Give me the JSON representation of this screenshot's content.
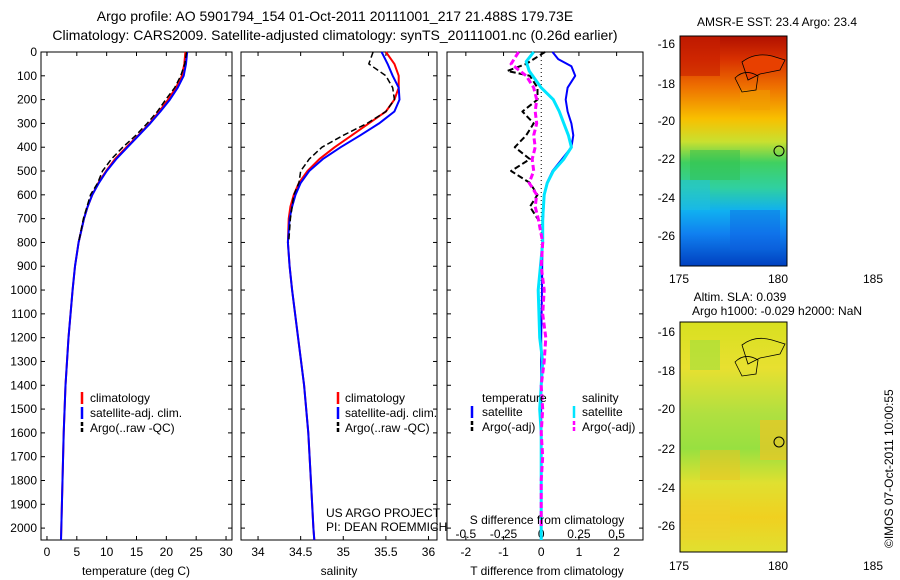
{
  "header": {
    "title_line1": "Argo profile: AO 5901794_154 01-Oct-2011 20111001_217 21.488S 179.73E",
    "title_line2": "Climatology: CARS2009. Satellite-adjusted climatology: synTS_20111001.nc (0.26d earlier)"
  },
  "colors": {
    "climatology": "#ff0000",
    "satellite": "#0000ff",
    "argo": "#000000",
    "sal_satellite": "#00e5ff",
    "sal_argo": "#ff00ff"
  },
  "chart_data": [
    {
      "id": "temperature",
      "type": "line",
      "xlabel": "temperature (deg C)",
      "ylabel": "",
      "xlim": [
        -1,
        31
      ],
      "ylim": [
        2050,
        0
      ],
      "xticks": [
        "0",
        "5",
        "10",
        "15",
        "20",
        "25",
        "30"
      ],
      "yticks": [
        "0",
        "100",
        "200",
        "300",
        "400",
        "500",
        "600",
        "700",
        "800",
        "900",
        "1000",
        "1100",
        "1200",
        "1300",
        "1400",
        "1500",
        "1600",
        "1700",
        "1800",
        "1900",
        "2000"
      ],
      "legend": [
        "climatology",
        "satellite-adj. clim.",
        "Argo(..raw -QC)"
      ],
      "series": [
        {
          "name": "climatology",
          "depth": [
            0,
            50,
            100,
            150,
            200,
            250,
            300,
            350,
            400,
            450,
            500,
            550,
            600,
            650,
            700,
            800,
            900,
            1000,
            1200,
            1400,
            1600,
            1800,
            2000,
            2050
          ],
          "values": [
            23.2,
            23.0,
            22.6,
            21.6,
            20.3,
            18.8,
            17.2,
            15.3,
            13.3,
            11.4,
            9.9,
            8.6,
            7.6,
            6.8,
            6.2,
            5.3,
            4.7,
            4.3,
            3.6,
            3.1,
            2.8,
            2.6,
            2.4,
            2.35
          ]
        },
        {
          "name": "satellite-adj. clim.",
          "depth": [
            0,
            50,
            100,
            150,
            200,
            250,
            300,
            350,
            400,
            450,
            500,
            550,
            600,
            650,
            700,
            800,
            900,
            1000,
            1200,
            1400,
            1600,
            1800,
            2000,
            2050
          ],
          "values": [
            23.5,
            23.3,
            22.9,
            21.9,
            20.6,
            19.0,
            17.3,
            15.4,
            13.5,
            11.6,
            10.0,
            8.7,
            7.6,
            6.8,
            6.2,
            5.3,
            4.7,
            4.3,
            3.6,
            3.1,
            2.8,
            2.6,
            2.4,
            2.35
          ]
        },
        {
          "name": "Argo(..raw -QC)",
          "depth": [
            0,
            50,
            100,
            150,
            200,
            250,
            300,
            350,
            400,
            450,
            500,
            550,
            600,
            650,
            700,
            800
          ],
          "values": [
            23.4,
            23.1,
            22.4,
            21.4,
            19.9,
            18.5,
            16.8,
            14.9,
            12.7,
            10.8,
            9.3,
            8.5,
            7.3,
            6.7,
            6.1,
            5.3
          ]
        }
      ]
    },
    {
      "id": "salinity",
      "type": "line",
      "xlabel": "salinity",
      "ylabel": "",
      "xlim": [
        33.8,
        36.1
      ],
      "ylim": [
        2050,
        0
      ],
      "xticks": [
        "34",
        "34.5",
        "35",
        "35.5",
        "36"
      ],
      "legend": [
        "climatology",
        "satellite-adj. clim.",
        "Argo(..raw -QC)"
      ],
      "annotation": [
        "US ARGO PROJECT",
        "PI: DEAN ROEMMICH"
      ],
      "series": [
        {
          "name": "climatology",
          "depth": [
            0,
            50,
            100,
            150,
            200,
            250,
            300,
            350,
            400,
            450,
            500,
            550,
            600,
            650,
            700,
            800,
            900,
            1000,
            1200,
            1400,
            1600,
            1800,
            2000,
            2050
          ],
          "values": [
            35.5,
            35.6,
            35.65,
            35.65,
            35.6,
            35.5,
            35.3,
            35.1,
            34.9,
            34.72,
            34.58,
            34.48,
            34.42,
            34.38,
            34.36,
            34.35,
            34.37,
            34.4,
            34.47,
            34.54,
            34.59,
            34.62,
            34.65,
            34.66
          ]
        },
        {
          "name": "satellite-adj. clim.",
          "depth": [
            0,
            50,
            100,
            150,
            200,
            250,
            300,
            350,
            400,
            450,
            500,
            550,
            600,
            650,
            700,
            800,
            900,
            1000,
            1200,
            1400,
            1600,
            1800,
            2000,
            2050
          ],
          "values": [
            35.45,
            35.52,
            35.58,
            35.65,
            35.66,
            35.6,
            35.42,
            35.2,
            34.97,
            34.76,
            34.6,
            34.5,
            34.44,
            34.4,
            34.37,
            34.35,
            34.37,
            34.4,
            34.47,
            34.54,
            34.59,
            34.62,
            34.65,
            34.66
          ]
        },
        {
          "name": "Argo(..raw -QC)",
          "depth": [
            0,
            50,
            80,
            100,
            150,
            200,
            250,
            300,
            350,
            400,
            450,
            500,
            550,
            600,
            650,
            700,
            800
          ],
          "values": [
            35.35,
            35.3,
            35.42,
            35.5,
            35.58,
            35.6,
            35.5,
            35.28,
            35.0,
            34.75,
            34.6,
            34.5,
            34.48,
            34.42,
            34.4,
            34.38,
            34.36
          ]
        }
      ]
    },
    {
      "id": "difference",
      "type": "line",
      "xlabel": "T difference from climatology",
      "xlabel_top": "S difference from climatology",
      "xlim": [
        -2.5,
        2.7
      ],
      "ylim": [
        2050,
        0
      ],
      "xticks": [
        "-2",
        "-1",
        "0",
        "1",
        "2"
      ],
      "xticks_top": [
        "-0.5",
        "-0.25",
        "0",
        "0.25",
        "0.5"
      ],
      "legend_t_title": "temperature",
      "legend_s_title": "salinity",
      "legend": [
        "satellite",
        "Argo(-adj)",
        "satellite",
        "Argo(-adj)"
      ],
      "series": [
        {
          "name": "T satellite",
          "depth": [
            0,
            30,
            60,
            100,
            150,
            200,
            250,
            300,
            350,
            400,
            450,
            500,
            550,
            600,
            700,
            800,
            1000,
            1200,
            1500,
            2000,
            2050
          ],
          "values": [
            0.3,
            0.45,
            0.8,
            0.9,
            0.7,
            0.65,
            0.7,
            0.8,
            0.85,
            0.8,
            0.55,
            0.3,
            0.15,
            0.08,
            0.05,
            0.03,
            0.02,
            0.0,
            0.0,
            0.0,
            0.0
          ]
        },
        {
          "name": "T Argo(-adj)",
          "depth": [
            0,
            50,
            80,
            100,
            150,
            200,
            250,
            300,
            350,
            400,
            450,
            500,
            550,
            600,
            650,
            700
          ],
          "values": [
            0.1,
            -0.4,
            -0.9,
            -0.3,
            -0.1,
            -0.1,
            -0.5,
            -0.2,
            -0.4,
            -0.7,
            -0.3,
            -0.8,
            -0.3,
            -0.1,
            -0.3,
            -0.1
          ]
        },
        {
          "name": "S satellite",
          "depth": [
            0,
            40,
            80,
            150,
            200,
            250,
            300,
            350,
            400,
            450,
            500,
            550,
            600,
            700,
            800,
            1000,
            1200,
            1300,
            1400,
            1500,
            1600,
            2000,
            2050
          ],
          "values": [
            -0.05,
            -0.1,
            -0.08,
            0.0,
            0.08,
            0.12,
            0.15,
            0.18,
            0.2,
            0.15,
            0.08,
            0.04,
            0.02,
            0.01,
            0.01,
            -0.02,
            -0.01,
            0.01,
            0.0,
            -0.01,
            0.0,
            0.0,
            0.0
          ]
        },
        {
          "name": "S Argo(-adj)",
          "depth": [
            0,
            50,
            100,
            150,
            200,
            250,
            300,
            350,
            400,
            450,
            500,
            550,
            600,
            650,
            700,
            800,
            900,
            1000,
            1100,
            1200,
            1300,
            1400,
            1500,
            1600,
            1700,
            1800,
            2000
          ],
          "values": [
            -0.15,
            -0.2,
            -0.1,
            -0.05,
            -0.03,
            -0.04,
            -0.03,
            -0.05,
            -0.04,
            -0.06,
            -0.05,
            -0.08,
            -0.03,
            -0.04,
            -0.02,
            0.01,
            0.0,
            0.02,
            0.01,
            0.03,
            0.02,
            0.0,
            0.01,
            0.0,
            0.01,
            0.0,
            0.0
          ]
        }
      ]
    }
  ],
  "maps": {
    "sst": {
      "title": "AMSR-E SST: 23.4  Argo: 23.4",
      "xticks": [
        "175",
        "180",
        "185"
      ],
      "yticks": [
        "-16",
        "-18",
        "-20",
        "-22",
        "-24",
        "-26"
      ]
    },
    "sla": {
      "title_line1": "Altim. SLA: 0.039",
      "title_line2": "Argo h1000: -0.029 h2000: NaN",
      "xticks": [
        "175",
        "180",
        "185"
      ],
      "yticks": [
        "-16",
        "-18",
        "-20",
        "-22",
        "-24",
        "-26"
      ]
    }
  },
  "footer": {
    "credit": "©IMOS 07-Oct-2011 10:00:55"
  }
}
